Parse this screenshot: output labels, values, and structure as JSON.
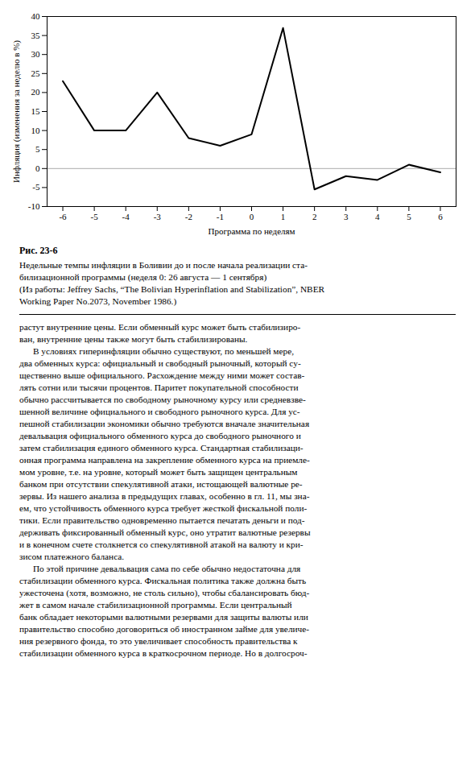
{
  "chart_data": {
    "type": "line",
    "x": [
      -6,
      -5,
      -4,
      -3,
      -2,
      -1,
      0,
      1,
      2,
      3,
      4,
      5,
      6
    ],
    "values": [
      23,
      10,
      10,
      20,
      8,
      6,
      9,
      37,
      -5.5,
      -2,
      -3,
      1,
      -1
    ],
    "color": "#000000",
    "xlabel": "Программа по неделям",
    "ylabel": "Инфляция (изменения за неделю в %)",
    "xlim": [
      -6.5,
      6.5
    ],
    "ylim": [
      -10,
      40
    ],
    "xticks": [
      -6,
      -5,
      -4,
      -3,
      -2,
      -1,
      0,
      1,
      2,
      3,
      4,
      5,
      6
    ],
    "yticks": [
      -10,
      -5,
      0,
      5,
      10,
      15,
      20,
      25,
      30,
      35,
      40
    ],
    "grid": false,
    "title": "Рис. 23-6",
    "caption": [
      "Недельные темпы инфляции в Боливии до и после начала реализации ста-",
      "билизационной программы (неделя 0: 26 августа — 1 сентября)",
      "(Из работы: Jeffrey Sachs, “The Bolivian Hyperinflation and Stabilization”, NBER",
      "Working Paper No.2073, November 1986.)"
    ],
    "text": [
      "растут внутренние цены. Если обменный курс может быть стабилизиро-",
      "ван, внутренние цены также могут быть стабилизированы.",
      "      В условиях гиперинфляции обычно существуют, по меньшей мере,",
      "два обменных курса: официальный и свободный рыночный, который су-",
      "щественно выше официального. Расхождение между ними может состав-",
      "лять сотни или тысячи процентов. Паритет покупательной способности",
      "обычно рассчитывается по свободному рыночному курсу или средневзве-",
      "шенной величине официального и свободного рыночного курса. Для ус-",
      "пешной стабилизации экономики обычно требуются вначале значительная",
      "девальвация официального обменного курса до свободного рыночного и",
      "затем стабилизация единого обменного курса. Стандартная стабилизаци-",
      "онная программа направлена на закрепление обменного курса на приемле-",
      "мом уровне, т.е. на уровне, который может быть защищен центральным",
      "банком при отсутствии спекулятивной атаки, истощающей валютные ре-",
      "зервы. Из нашего анализа в предыдущих главах, особенно в гл. 11, мы зна-",
      "ем, что устойчивость обменного курса требует жесткой фискальной поли-",
      "тики. Если правительство одновременно пытается печатать деньги и под-",
      "держивать фиксированный обменный курс, оно утратит валютные резервы",
      "и в конечном счете столкнется со спекулятивной атакой на валюту и кри-",
      "зисом платежного баланса.",
      "      По этой причине девальвация сама по себе обычно недостаточна для",
      "стабилизации обменного курса. Фискальная политика также должна быть",
      "ужесточена (хотя, возможно, не столь сильно), чтобы сбалансировать бюд-",
      "жет в самом начале стабилизационной программы. Если центральный",
      "банк обладает некоторыми валютными резервами для защиты валюты или",
      "правительство способно договориться об иностранном займе для увеличе-",
      "ния резервного фонда, то это увеличивает способность правительства к",
      "стабилизации обменного курса в краткосрочном периоде. Но в долгосроч-"
    ]
  }
}
